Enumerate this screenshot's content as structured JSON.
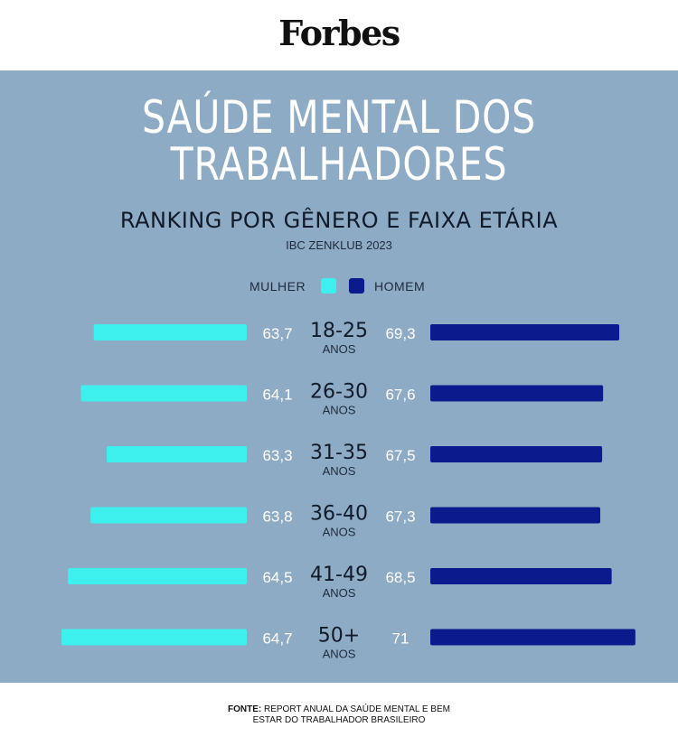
{
  "brand": "Forbes",
  "title_line1": "SAÚDE MENTAL DOS",
  "title_line2": "TRABALHADORES",
  "subtitle": "RANKING POR GÊNERO E FAIXA ETÁRIA",
  "source_tag": "IBC ZENKLUB 2023",
  "footer": {
    "label": "FONTE:",
    "text_line1": "REPORT ANUAL DA SAÚDE MENTAL E BEM",
    "text_line2": "ESTAR DO TRABALHADOR BRASILEIRO"
  },
  "colors": {
    "background": "#8eabc5",
    "mulher": "#3df0ee",
    "homem": "#0b1a8c"
  },
  "chart_data": {
    "type": "bar",
    "orientation": "horizontal-butterfly",
    "categories": [
      {
        "range": "18-25",
        "unit": "ANOS"
      },
      {
        "range": "26-30",
        "unit": "ANOS"
      },
      {
        "range": "31-35",
        "unit": "ANOS"
      },
      {
        "range": "36-40",
        "unit": "ANOS"
      },
      {
        "range": "41-49",
        "unit": "ANOS"
      },
      {
        "range": "50+",
        "unit": "ANOS"
      }
    ],
    "series": [
      {
        "name": "MULHER",
        "side": "left",
        "values": [
          63.7,
          64.1,
          63.3,
          63.8,
          64.5,
          64.7
        ],
        "labels": [
          "63,7",
          "64,1",
          "63,3",
          "63,8",
          "64,5",
          "64,7"
        ]
      },
      {
        "name": "HOMEM",
        "side": "right",
        "values": [
          69.3,
          67.6,
          67.5,
          67.3,
          68.5,
          71
        ],
        "labels": [
          "69,3",
          "67,6",
          "67,5",
          "67,3",
          "68,5",
          "71"
        ]
      }
    ],
    "legend": "top-center",
    "grid": false
  }
}
